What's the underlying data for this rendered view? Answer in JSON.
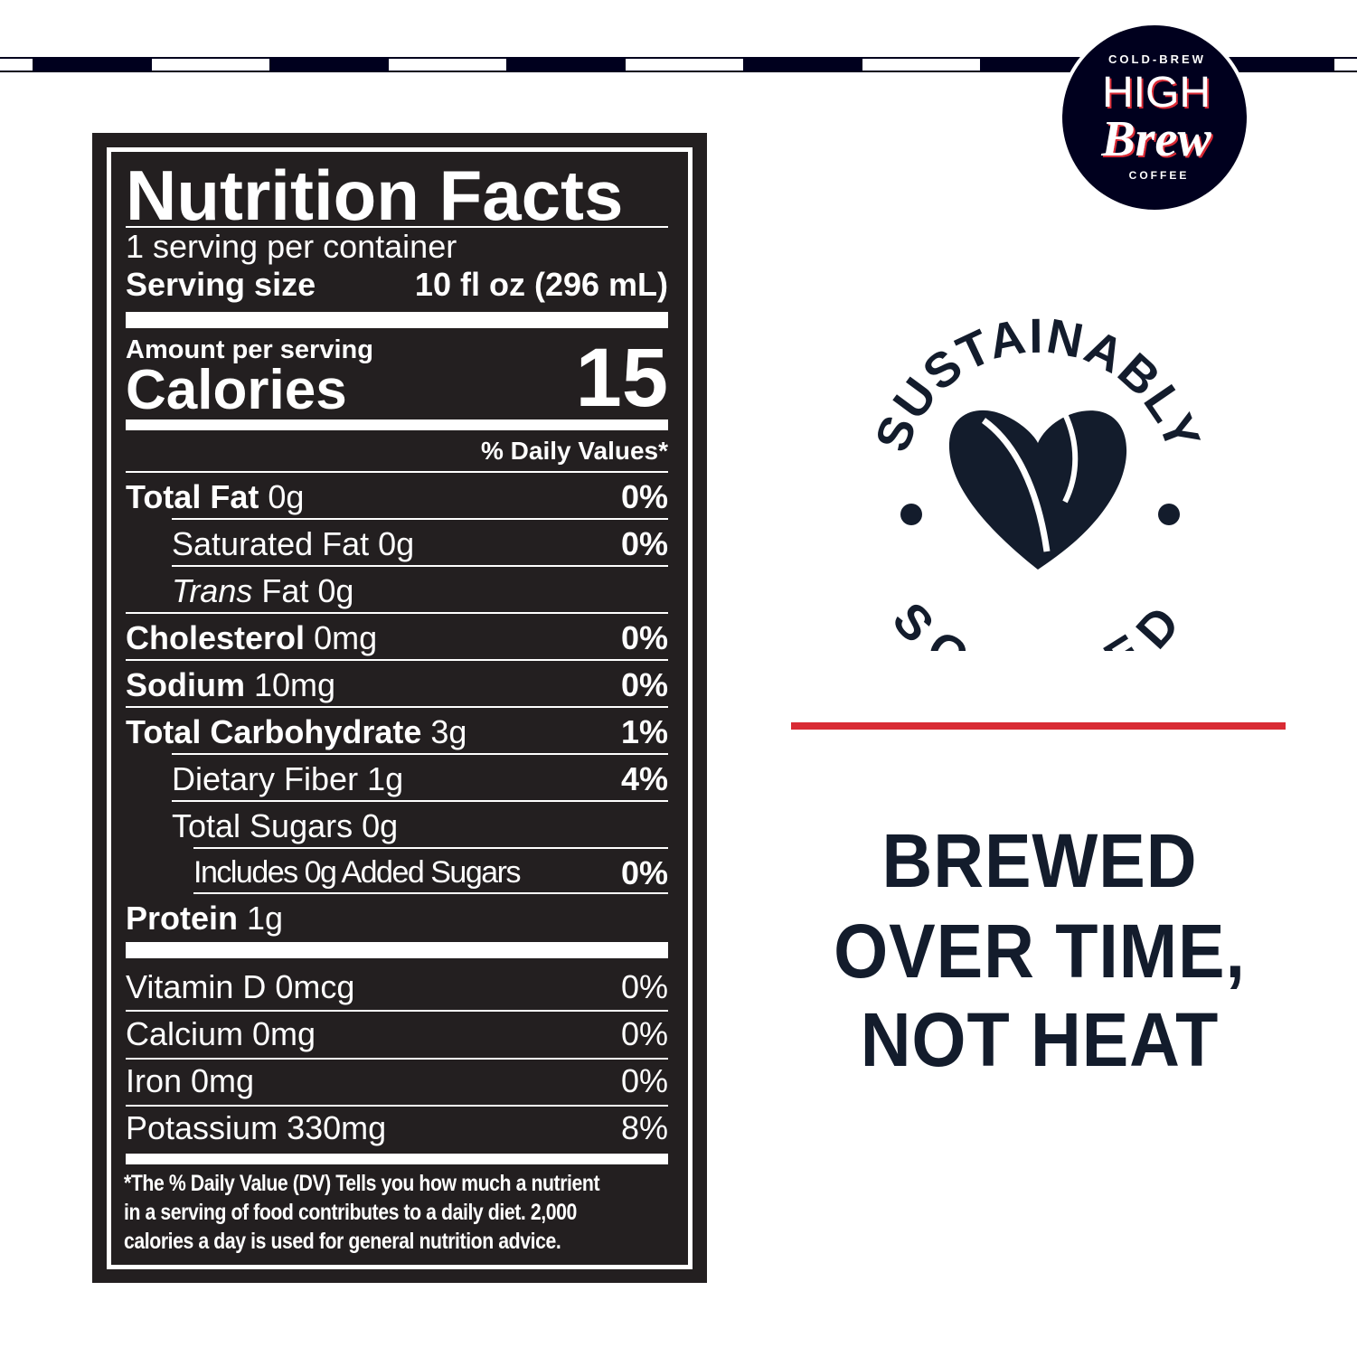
{
  "brand": {
    "top": "COLD-BREW",
    "name1": "HIGH",
    "name2": "Brew",
    "bottom": "COFFEE",
    "navy": "#00001e",
    "red": "#d92b34"
  },
  "nutrition": {
    "title": "Nutrition Facts",
    "servings": "1 serving per container",
    "serving_size_label": "Serving size",
    "serving_size_value": "10 fl oz (296 mL)",
    "amount_per_serving": "Amount per serving",
    "calories_label": "Calories",
    "calories_value": "15",
    "dv_header": "% Daily Values*",
    "rows": [
      {
        "name": "Total Fat",
        "amount": "0g",
        "dv": "0%"
      },
      {
        "name": "Saturated Fat",
        "amount": "0g",
        "dv": "0%"
      },
      {
        "name": "Trans",
        "name2": "Fat",
        "amount": "0g",
        "dv": ""
      },
      {
        "name": "Cholesterol",
        "amount": "0mg",
        "dv": "0%"
      },
      {
        "name": "Sodium",
        "amount": "10mg",
        "dv": "0%"
      },
      {
        "name": "Total Carbohydrate",
        "amount": "3g",
        "dv": "1%"
      },
      {
        "name": "Dietary Fiber",
        "amount": "1g",
        "dv": "4%"
      },
      {
        "name": "Total Sugars",
        "amount": "0g",
        "dv": ""
      },
      {
        "name": "Includes 0g Added Sugars",
        "amount": "",
        "dv": "0%"
      },
      {
        "name": "Protein",
        "amount": "1g",
        "dv": ""
      }
    ],
    "vitamins": [
      {
        "name": "Vitamin D 0mcg",
        "dv": "0%"
      },
      {
        "name": "Calcium 0mg",
        "dv": "0%"
      },
      {
        "name": "Iron 0mg",
        "dv": "0%"
      },
      {
        "name": "Potassium 330mg",
        "dv": "8%"
      }
    ],
    "footnote": [
      "*The % Daily Value (DV) Tells you how much a nutrient",
      "in a serving of food contributes to a daily diet. 2,000",
      "calories a day is used for general nutrition advice."
    ]
  },
  "badge": {
    "top": "SUSTAINABLY",
    "bottom": "SOURCED"
  },
  "slogan": [
    "BREWED",
    "OVER TIME,",
    "NOT HEAT"
  ]
}
